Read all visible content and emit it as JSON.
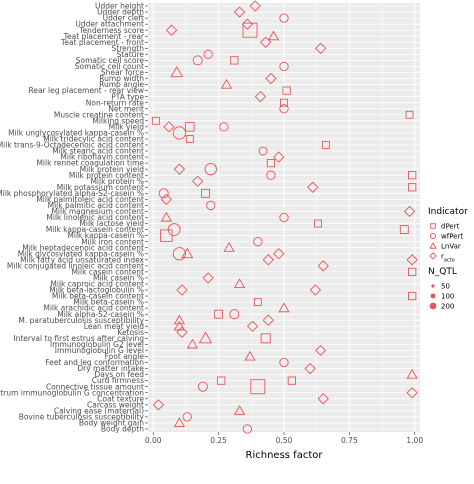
{
  "chart_data": {
    "type": "scatter",
    "xlabel": "Richness factor",
    "ylabel": "",
    "xlim": [
      -0.02,
      1.02
    ],
    "x_ticks": [
      "0.00",
      "0.25",
      "0.50",
      "0.75",
      "1.00"
    ],
    "x_tick_values": [
      0,
      0.25,
      0.5,
      0.75,
      1.0
    ],
    "grid": true,
    "legend_position": "right",
    "point_color": "#e8565a",
    "categories": [
      "Udder height",
      "Udder depth",
      "Udder cleft",
      "Udder attachment",
      "Tenderness score",
      "Teat placement - rear",
      "Teat placement - front",
      "Strength",
      "Stature",
      "Somatic cell score",
      "Somatic cell count",
      "Shear force",
      "Rump width",
      "Rump angle",
      "Rear leg placement - rear view",
      "PTA type",
      "Non-return rate",
      "Net merit",
      "Muscle creatine content",
      "Milking speed",
      "Milk yield",
      "Milk unglycosylated kappa-casein %",
      "Milk tridecylic acid content",
      "Milk trans-9-Octadecenoic acid content",
      "Milk stearic acid content",
      "Milk riboflavin content",
      "Milk rennet coagulation time",
      "Milk protein yield",
      "Milk protein content",
      "Milk protein %",
      "Milk potassium content",
      "Milk phosphorylated alpha-S2-casein %",
      "Milk palmitoleic acid content",
      "Milk palmitic acid content",
      "Milk magnesium content",
      "Milk linolenic acid content",
      "Milk lactose yield",
      "Milk kappa-casein content",
      "Milk kappa-casein %",
      "Milk iron content",
      "Milk heptadecenoic acid content",
      "Milk glycosylated kappa-casein %",
      "Milk fatty acid unsaturated index",
      "Milk conjugated linoleic acid content",
      "Milk casein content",
      "Milk casein %",
      "Milk caproic acid content",
      "Milk beta-lactoglobulin %",
      "Milk beta-casein content",
      "Milk beta-casein %",
      "Milk arachidic acid content",
      "Milk alpha-S2-casein %",
      "M. paratuberculosis susceptibility",
      "Lean meat yield",
      "Ketosis",
      "Interval to first estrus after calving",
      "Immunoglobulin G2 level",
      "Immunoglobulin G level",
      "Foot angle",
      "Feet and leg conformation",
      "Dry matter intake",
      "Days on feed",
      "Curd firmness",
      "Connective tissue amount",
      "Colostrum immunoglobulin G concentration",
      "Coat texture",
      "Carcass weight",
      "Calving ease (maternal)",
      "Bovine tuberculosis susceptibility",
      "Body weight gain",
      "Body depth"
    ],
    "legend": {
      "indicator": {
        "title": "Indicator",
        "entries": [
          {
            "label": "dPert",
            "shape": "square"
          },
          {
            "label": "wfPert",
            "shape": "circle"
          },
          {
            "label": "LnVar",
            "shape": "triangle"
          },
          {
            "label_main": "r",
            "label_sub": "acto",
            "shape": "diamond"
          }
        ]
      },
      "size": {
        "title": "N_QTL",
        "entries": [
          {
            "label": "50",
            "value": 50
          },
          {
            "label": "100",
            "value": 100
          },
          {
            "label": "200",
            "value": 200
          }
        ]
      }
    },
    "points": [
      {
        "category": "Udder height",
        "x": 0.39,
        "shape": "diamond",
        "n": 30
      },
      {
        "category": "Udder depth",
        "x": 0.33,
        "shape": "diamond",
        "n": 30
      },
      {
        "category": "Udder cleft",
        "x": 0.5,
        "shape": "circle",
        "n": 30
      },
      {
        "category": "Udder attachment",
        "x": 0.36,
        "shape": "diamond",
        "n": 30
      },
      {
        "category": "Tenderness score",
        "x": 0.07,
        "shape": "diamond",
        "n": 30
      },
      {
        "category": "Tenderness score",
        "x": 0.37,
        "shape": "square",
        "n": 200
      },
      {
        "category": "Teat placement - rear",
        "x": 0.46,
        "shape": "triangle",
        "n": 30
      },
      {
        "category": "Teat placement - front",
        "x": 0.43,
        "shape": "diamond",
        "n": 30
      },
      {
        "category": "Strength",
        "x": 0.64,
        "shape": "diamond",
        "n": 30
      },
      {
        "category": "Stature",
        "x": 0.21,
        "shape": "circle",
        "n": 30
      },
      {
        "category": "Somatic cell score",
        "x": 0.17,
        "shape": "circle",
        "n": 40
      },
      {
        "category": "Somatic cell score",
        "x": 0.31,
        "shape": "square",
        "n": 30
      },
      {
        "category": "Somatic cell count",
        "x": 0.5,
        "shape": "circle",
        "n": 30
      },
      {
        "category": "Shear force",
        "x": 0.09,
        "shape": "triangle",
        "n": 50
      },
      {
        "category": "Rump width",
        "x": 0.45,
        "shape": "diamond",
        "n": 30
      },
      {
        "category": "Rump angle",
        "x": 0.28,
        "shape": "triangle",
        "n": 30
      },
      {
        "category": "Rear leg placement - rear view",
        "x": 0.51,
        "shape": "square",
        "n": 30
      },
      {
        "category": "PTA type",
        "x": 0.41,
        "shape": "diamond",
        "n": 30
      },
      {
        "category": "Non-return rate",
        "x": 0.5,
        "shape": "square",
        "n": 25
      },
      {
        "category": "Net merit",
        "x": 0.5,
        "shape": "circle",
        "n": 30
      },
      {
        "category": "Muscle creatine content",
        "x": 0.98,
        "shape": "square",
        "n": 25
      },
      {
        "category": "Milking speed",
        "x": 0.01,
        "shape": "square",
        "n": 25
      },
      {
        "category": "Milk yield",
        "x": 0.06,
        "shape": "diamond",
        "n": 30
      },
      {
        "category": "Milk yield",
        "x": 0.14,
        "shape": "square",
        "n": 50
      },
      {
        "category": "Milk yield",
        "x": 0.27,
        "shape": "circle",
        "n": 30
      },
      {
        "category": "Milk unglycosylated kappa-casein %",
        "x": 0.1,
        "shape": "circle",
        "n": 100
      },
      {
        "category": "Milk tridecylic acid content",
        "x": 0.14,
        "shape": "square",
        "n": 25
      },
      {
        "category": "Milk trans-9-Octadecenoic acid content",
        "x": 0.66,
        "shape": "square",
        "n": 25
      },
      {
        "category": "Milk stearic acid content",
        "x": 0.42,
        "shape": "circle",
        "n": 25
      },
      {
        "category": "Milk riboflavin content",
        "x": 0.48,
        "shape": "diamond",
        "n": 30
      },
      {
        "category": "Milk rennet coagulation time",
        "x": 0.45,
        "shape": "square",
        "n": 30
      },
      {
        "category": "Milk protein yield",
        "x": 0.1,
        "shape": "diamond",
        "n": 30
      },
      {
        "category": "Milk protein yield",
        "x": 0.22,
        "shape": "circle",
        "n": 80
      },
      {
        "category": "Milk protein content",
        "x": 0.45,
        "shape": "circle",
        "n": 30
      },
      {
        "category": "Milk protein content",
        "x": 0.99,
        "shape": "square",
        "n": 30
      },
      {
        "category": "Milk protein %",
        "x": 0.17,
        "shape": "diamond",
        "n": 30
      },
      {
        "category": "Milk potassium content",
        "x": 0.61,
        "shape": "diamond",
        "n": 30
      },
      {
        "category": "Milk potassium content",
        "x": 0.99,
        "shape": "square",
        "n": 30
      },
      {
        "category": "Milk phosphorylated alpha-S2-casein %",
        "x": 0.04,
        "shape": "circle",
        "n": 40
      },
      {
        "category": "Milk phosphorylated alpha-S2-casein %",
        "x": 0.2,
        "shape": "square",
        "n": 40
      },
      {
        "category": "Milk fatty acid unsaturated index",
        "x": 0.44,
        "shape": "diamond",
        "n": 30
      },
      {
        "category": "Milk fatty acid unsaturated index",
        "x": 0.99,
        "shape": "diamond",
        "n": 30
      },
      {
        "category": "Milk palmitoleic acid content",
        "x": 0.05,
        "shape": "diamond",
        "n": 30
      },
      {
        "category": "Milk palmitic acid content",
        "x": 0.22,
        "shape": "circle",
        "n": 30
      },
      {
        "category": "Milk magnesium content",
        "x": 0.98,
        "shape": "diamond",
        "n": 30
      },
      {
        "category": "Milk linolenic acid content",
        "x": 0.05,
        "shape": "triangle",
        "n": 30
      },
      {
        "category": "Milk linolenic acid content",
        "x": 0.5,
        "shape": "circle",
        "n": 30
      },
      {
        "category": "Milk lactose yield",
        "x": 0.63,
        "shape": "square",
        "n": 25
      },
      {
        "category": "Milk kappa-casein content",
        "x": 0.08,
        "shape": "circle",
        "n": 90
      },
      {
        "category": "Milk kappa-casein content",
        "x": 0.96,
        "shape": "square",
        "n": 40
      },
      {
        "category": "Milk kappa-casein %",
        "x": 0.05,
        "shape": "square",
        "n": 120
      },
      {
        "category": "Milk iron content",
        "x": 0.4,
        "shape": "circle",
        "n": 30
      },
      {
        "category": "Milk heptadecenoic acid content",
        "x": 0.29,
        "shape": "triangle",
        "n": 30
      },
      {
        "category": "Milk glycosylated kappa-casein %",
        "x": 0.1,
        "shape": "circle",
        "n": 100
      },
      {
        "category": "Milk glycosylated kappa-casein %",
        "x": 0.13,
        "shape": "triangle",
        "n": 40
      },
      {
        "category": "Milk glycosylated kappa-casein %",
        "x": 0.48,
        "shape": "diamond",
        "n": 30
      },
      {
        "category": "Milk conjugated linoleic acid content",
        "x": 0.65,
        "shape": "diamond",
        "n": 30
      },
      {
        "category": "Milk casein content",
        "x": 0.99,
        "shape": "square",
        "n": 30
      },
      {
        "category": "Milk casein %",
        "x": 0.21,
        "shape": "diamond",
        "n": 30
      },
      {
        "category": "Milk caproic acid content",
        "x": 0.33,
        "shape": "triangle",
        "n": 30
      },
      {
        "category": "Milk beta-lactoglobulin %",
        "x": 0.11,
        "shape": "diamond",
        "n": 30
      },
      {
        "category": "Milk beta-lactoglobulin %",
        "x": 0.62,
        "shape": "diamond",
        "n": 30
      },
      {
        "category": "Milk beta-casein content",
        "x": 0.99,
        "shape": "square",
        "n": 30
      },
      {
        "category": "Milk beta-casein %",
        "x": 0.4,
        "shape": "square",
        "n": 25
      },
      {
        "category": "Milk arachidic acid content",
        "x": 0.5,
        "shape": "triangle",
        "n": 30
      },
      {
        "category": "Milk alpha-S2-casein %",
        "x": 0.25,
        "shape": "square",
        "n": 40
      },
      {
        "category": "Milk alpha-S2-casein %",
        "x": 0.31,
        "shape": "circle",
        "n": 40
      },
      {
        "category": "M. paratuberculosis susceptibility",
        "x": 0.1,
        "shape": "triangle",
        "n": 30
      },
      {
        "category": "M. paratuberculosis susceptibility",
        "x": 0.44,
        "shape": "diamond",
        "n": 30
      },
      {
        "category": "Lean meat yield",
        "x": 0.1,
        "shape": "triangle",
        "n": 30
      },
      {
        "category": "Lean meat yield",
        "x": 0.38,
        "shape": "diamond",
        "n": 30
      },
      {
        "category": "Ketosis",
        "x": 0.11,
        "shape": "diamond",
        "n": 30
      },
      {
        "category": "Interval to first estrus after calving",
        "x": 0.2,
        "shape": "triangle",
        "n": 60
      },
      {
        "category": "Interval to first estrus after calving",
        "x": 0.43,
        "shape": "square",
        "n": 60
      },
      {
        "category": "Immunoglobulin G2 level",
        "x": 0.15,
        "shape": "triangle",
        "n": 30
      },
      {
        "category": "Immunoglobulin G level",
        "x": 0.64,
        "shape": "diamond",
        "n": 25
      },
      {
        "category": "Foot angle",
        "x": 0.37,
        "shape": "triangle",
        "n": 30
      },
      {
        "category": "Feet and leg conformation",
        "x": 0.5,
        "shape": "circle",
        "n": 30
      },
      {
        "category": "Dry matter intake",
        "x": 0.6,
        "shape": "diamond",
        "n": 30
      },
      {
        "category": "Days on feed",
        "x": 0.99,
        "shape": "triangle",
        "n": 30
      },
      {
        "category": "Curd firmness",
        "x": 0.26,
        "shape": "square",
        "n": 30
      },
      {
        "category": "Curd firmness",
        "x": 0.53,
        "shape": "square",
        "n": 30
      },
      {
        "category": "Connective tissue amount",
        "x": 0.19,
        "shape": "circle",
        "n": 40
      },
      {
        "category": "Connective tissue amount",
        "x": 0.4,
        "shape": "square",
        "n": 200
      },
      {
        "category": "Colostrum immunoglobulin G concentration",
        "x": 0.99,
        "shape": "diamond",
        "n": 30
      },
      {
        "category": "Coat texture",
        "x": 0.65,
        "shape": "diamond",
        "n": 30
      },
      {
        "category": "Carcass weight",
        "x": 0.02,
        "shape": "diamond",
        "n": 30
      },
      {
        "category": "Calving ease (maternal)",
        "x": 0.33,
        "shape": "triangle",
        "n": 30
      },
      {
        "category": "Bovine tuberculosis susceptibility",
        "x": 0.13,
        "shape": "circle",
        "n": 30
      },
      {
        "category": "Body weight gain",
        "x": 0.1,
        "shape": "triangle",
        "n": 30
      },
      {
        "category": "Body depth",
        "x": 0.36,
        "shape": "circle",
        "n": 30
      }
    ]
  }
}
